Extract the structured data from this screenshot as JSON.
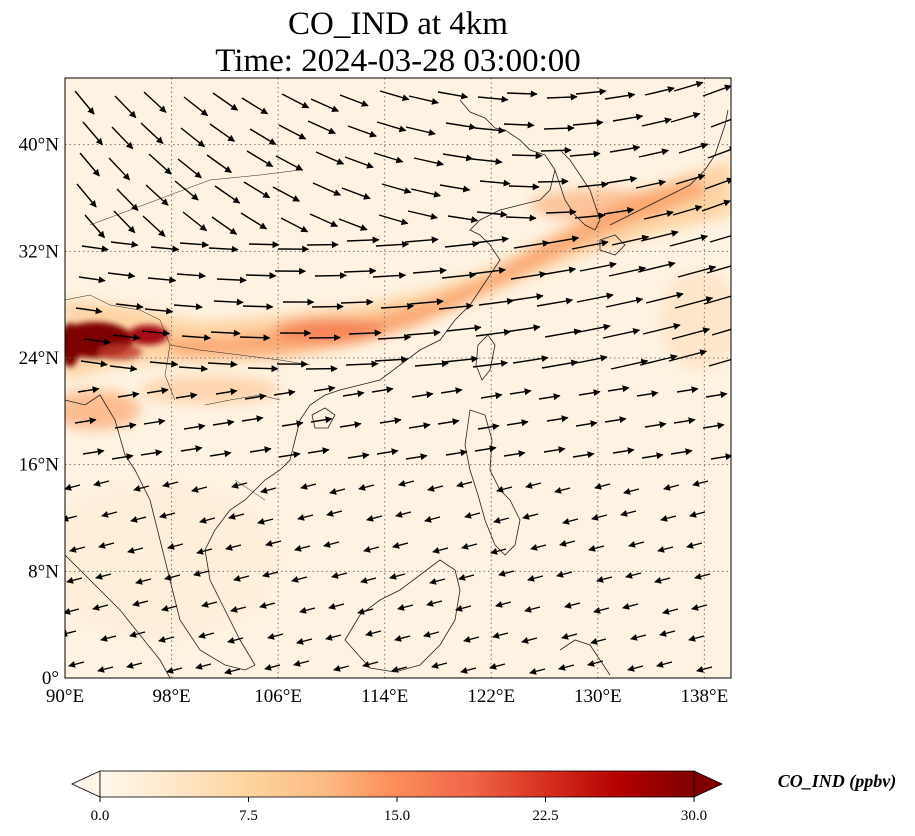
{
  "title": {
    "line1": "CO_IND at 4km",
    "line2": "Time: 2024-03-28 03:00:00"
  },
  "map": {
    "lon_range": [
      90,
      140
    ],
    "lat_range": [
      0,
      45
    ],
    "lon_ticks": [
      {
        "value": 90,
        "label": "90°E"
      },
      {
        "value": 98,
        "label": "98°E"
      },
      {
        "value": 106,
        "label": "106°E"
      },
      {
        "value": 114,
        "label": "114°E"
      },
      {
        "value": 122,
        "label": "122°E"
      },
      {
        "value": 130,
        "label": "130°E"
      },
      {
        "value": 138,
        "label": "138°E"
      }
    ],
    "lat_ticks": [
      {
        "value": 0,
        "label": "0°"
      },
      {
        "value": 8,
        "label": "8°N"
      },
      {
        "value": 16,
        "label": "16°N"
      },
      {
        "value": 24,
        "label": "24°N"
      },
      {
        "value": 32,
        "label": "32°N"
      },
      {
        "value": 40,
        "label": "40°N"
      }
    ],
    "gridlines": true,
    "field": "CO_IND",
    "colormap": "OrRd",
    "colormap_stops": [
      "#fff7ec",
      "#fee8c8",
      "#fdd49e",
      "#fdbb84",
      "#fc8d59",
      "#ef6548",
      "#d7301f",
      "#b30000",
      "#7f0000"
    ],
    "coastline_color": "#222222",
    "vector_color": "#000000"
  },
  "colorbar": {
    "min": 0,
    "max": 30,
    "ticks": [
      "0.0",
      "7.5",
      "15.0",
      "22.5",
      "30.0"
    ],
    "tick_values": [
      0,
      7.5,
      15,
      22.5,
      30
    ],
    "label": "CO_IND (ppbv)",
    "extend": "both"
  }
}
